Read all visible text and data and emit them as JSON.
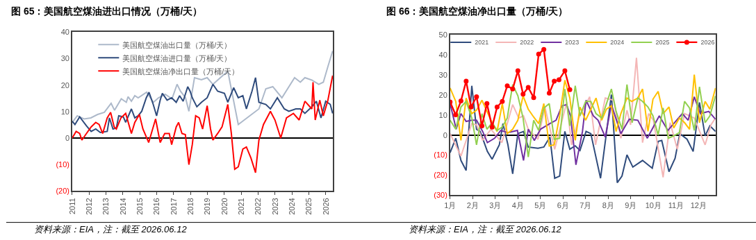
{
  "chart_data": [
    {
      "type": "line",
      "title": "图 65：美国航空煤油进出口情况（万桶/天）",
      "legend": "top left",
      "marker": "none",
      "line_style": "solid",
      "xlim": [
        2011,
        2026.43
      ],
      "xticks": [
        2011,
        2012,
        2013,
        2014,
        2015,
        2016,
        2017,
        2018,
        2019,
        2020,
        2021,
        2022,
        2023,
        2024,
        2025,
        2026
      ],
      "ylim": [
        -20,
        40
      ],
      "yticks": [
        {
          "value": -20,
          "label": "(20)"
        },
        {
          "value": -10,
          "label": "(10)"
        },
        0,
        10,
        20,
        30,
        40
      ],
      "annotations": [
        "资料来源：EIA，注：截至 2026.06.12"
      ],
      "series": [
        {
          "name": "美国航空煤油出口量（万桶/天）",
          "color": "#adb9ca",
          "x": [
            2011,
            2011.3,
            2011.7,
            2012.1,
            2012.5,
            2012.9,
            2013.3,
            2013.5,
            2013.9,
            2014.2,
            2014.3,
            2014.5,
            2014.7,
            2014.9,
            2015.4,
            2015.8,
            2016.1,
            2016.5,
            2016.9,
            2017.2,
            2017.4,
            2017.7,
            2017.9,
            2018.23,
            2018.64,
            2018.98,
            2019.32,
            2020.2,
            2020.82,
            2022.04,
            2022.45,
            2022.86,
            2023.4,
            2024.15,
            2024.49,
            2024.76,
            2025.17,
            2025.58,
            2025.85,
            2026.12,
            2026.4
          ],
          "values": [
            5.9,
            8.4,
            7.2,
            7.6,
            8.9,
            9.7,
            13.1,
            10.5,
            14.8,
            13.5,
            15.6,
            13.9,
            16.0,
            15.2,
            17.3,
            13.5,
            15.2,
            16.5,
            14.8,
            20.3,
            17.7,
            15.2,
            10.1,
            22.8,
            22.0,
            22.8,
            20.3,
            25.3,
            5.1,
            11.0,
            18.6,
            19.4,
            15.2,
            22.8,
            21.1,
            22.8,
            21.9,
            20.3,
            21.1,
            27.0,
            32.9
          ]
        },
        {
          "name": "美国航空煤油进口量（万桶/天）",
          "color": "#2f4b7c",
          "x": [
            2011,
            2011.16,
            2011.44,
            2011.84,
            2012.12,
            2012.39,
            2012.66,
            2013.07,
            2013.2,
            2013.41,
            2013.61,
            2013.75,
            2014.02,
            2014.16,
            2014.5,
            2014.7,
            2014.9,
            2015.11,
            2015.38,
            2015.54,
            2015.79,
            2015.99,
            2016.2,
            2016.33,
            2016.61,
            2016.88,
            2017.15,
            2017.35,
            2017.56,
            2017.83,
            2017.97,
            2018.1,
            2018.37,
            2018.64,
            2018.98,
            2019.32,
            2019.6,
            2020.0,
            2020.2,
            2020.55,
            2020.82,
            2021.09,
            2021.3,
            2021.63,
            2021.84,
            2022.04,
            2022.45,
            2022.72,
            2023.13,
            2023.54,
            2023.81,
            2024.22,
            2024.49,
            2024.76,
            2025.17,
            2025.44,
            2025.71,
            2025.99,
            2026.26,
            2026.4
          ],
          "values": [
            6.3,
            5.1,
            8.0,
            4.6,
            2.5,
            3.4,
            2.1,
            2.5,
            7.6,
            3.4,
            3.8,
            8.4,
            8.0,
            5.9,
            11.0,
            7.6,
            8.4,
            10.1,
            15.2,
            17.3,
            12.7,
            8.4,
            14.3,
            16.9,
            14.3,
            15.2,
            13.5,
            16.0,
            13.9,
            19.4,
            17.7,
            15.2,
            11.8,
            13.5,
            15.2,
            20.3,
            17.7,
            16.9,
            13.5,
            19.0,
            15.2,
            16.0,
            11.0,
            17.7,
            22.8,
            13.5,
            12.7,
            11.0,
            15.2,
            11.0,
            10.1,
            11.0,
            11.0,
            9.3,
            11.8,
            13.9,
            7.6,
            13.9,
            12.7,
            9.3
          ]
        },
        {
          "name": "美国航空煤油净出口量（万桶/天）",
          "color": "#ff0000",
          "x": [
            2011,
            2011.23,
            2011.44,
            2011.57,
            2011.84,
            2012.12,
            2012.39,
            2012.59,
            2012.8,
            2013.07,
            2013.27,
            2013.48,
            2013.61,
            2013.88,
            2014.16,
            2014.5,
            2014.7,
            2014.97,
            2015.18,
            2015.52,
            2015.93,
            2016.2,
            2016.47,
            2016.74,
            2016.88,
            2017.15,
            2017.29,
            2017.49,
            2017.69,
            2017.9,
            2018.1,
            2018.3,
            2018.51,
            2018.71,
            2018.98,
            2019.18,
            2019.32,
            2019.6,
            2019.86,
            2020.2,
            2020.41,
            2020.61,
            2020.82,
            2021.09,
            2021.3,
            2021.57,
            2021.84,
            2022.04,
            2022.31,
            2022.72,
            2022.99,
            2023.33,
            2023.67,
            2024.08,
            2024.42,
            2024.76,
            2025.17,
            2025.24,
            2025.37,
            2025.64,
            2025.85,
            2026.12,
            2026.4
          ],
          "values": [
            0,
            2.5,
            1.7,
            -0.8,
            1.7,
            4.2,
            5.9,
            5.1,
            1.7,
            7.6,
            9.7,
            4.2,
            3.4,
            7.6,
            9.3,
            1.7,
            5.9,
            8.9,
            3.4,
            -1.7,
            7.2,
            -1.7,
            1.7,
            1.7,
            -2.5,
            4.2,
            5.9,
            1.7,
            1.3,
            -10.1,
            -2.5,
            8.4,
            7.6,
            3.4,
            12.2,
            3.4,
            -0.8,
            1.7,
            4.2,
            12.7,
            1.7,
            -11.8,
            -10.9,
            -4.2,
            -3.4,
            -7.6,
            -13.1,
            -0.8,
            5.1,
            10.1,
            6.8,
            0,
            7.6,
            9.3,
            6.8,
            13.9,
            11.0,
            21.1,
            6.8,
            14.3,
            8.4,
            14.3,
            23.6
          ]
        }
      ]
    },
    {
      "type": "line",
      "title": "图 66：美国航空煤油净出口量（万桶/天）",
      "legend": "top",
      "marker": "none",
      "line_style": "solid",
      "xlim": [
        1,
        12.75
      ],
      "xticks": [
        {
          "value": 1,
          "label": "1月"
        },
        {
          "value": 2,
          "label": "2月"
        },
        {
          "value": 3,
          "label": "3月"
        },
        {
          "value": 4,
          "label": "4月"
        },
        {
          "value": 5,
          "label": "5月"
        },
        {
          "value": 6,
          "label": "6月"
        },
        {
          "value": 7,
          "label": "7月"
        },
        {
          "value": 8,
          "label": "8月"
        },
        {
          "value": 9,
          "label": "9月"
        },
        {
          "value": 10,
          "label": "10月"
        },
        {
          "value": 11,
          "label": "11月"
        },
        {
          "value": 12,
          "label": "12月"
        }
      ],
      "ylim": [
        -30,
        50
      ],
      "yticks": [
        {
          "value": -30,
          "label": "(30)"
        },
        {
          "value": -20,
          "label": "(20)"
        },
        {
          "value": -10,
          "label": "(10)"
        },
        0,
        10,
        20,
        30,
        40,
        50
      ],
      "annotations": [
        "资料来源：EIA，注：截至 2026.06.12"
      ],
      "series": [
        {
          "name": "2021",
          "color": "#2f4b7c",
          "x": [
            1.0,
            1.25,
            1.48,
            1.71,
            1.96,
            2.17,
            2.33,
            2.65,
            2.86,
            3.18,
            3.34,
            3.56,
            3.77,
            4.0,
            4.25,
            4.46,
            4.89,
            5.15,
            5.42,
            5.63,
            5.85,
            6.08,
            6.3,
            6.54,
            6.75,
            7.02,
            7.23,
            7.66,
            8.14,
            8.4,
            8.61,
            8.83,
            9.09,
            9.52,
            9.95,
            10.21,
            10.37,
            10.69,
            10.96,
            11.17,
            11.49,
            11.76,
            12.04,
            12.29,
            12.5,
            12.75
          ],
          "values": [
            -8.8,
            -1.6,
            -12.7,
            -17.7,
            24.6,
            2.9,
            1.8,
            -8.2,
            -12.1,
            -4.9,
            5.7,
            -4.9,
            -19.4,
            0.7,
            1.8,
            -6.0,
            -6.6,
            -6.0,
            -1.0,
            -21.6,
            -20.5,
            1.8,
            -7.1,
            -5.4,
            -7.7,
            1.8,
            0.7,
            -21.6,
            20.2,
            -23.8,
            -20.5,
            -9.9,
            -16.0,
            -12.7,
            -16.6,
            -3.2,
            -2.7,
            -18.3,
            -11.6,
            0.7,
            -2.1,
            -8.2,
            16.3,
            -0.4,
            4.6,
            1.8
          ]
        },
        {
          "name": "2022",
          "color": "#f4b6b6",
          "x": [
            1.0,
            1.48,
            1.96,
            2.17,
            2.44,
            2.81,
            3.29,
            3.77,
            4.04,
            4.25,
            4.46,
            4.89,
            5.2,
            5.63,
            6.16,
            6.38,
            6.7,
            7.18,
            7.44,
            7.87,
            8.24,
            8.56,
            8.83,
            8.99,
            9.25,
            9.52,
            9.79,
            10.0,
            10.43,
            10.74,
            11.06,
            11.38,
            11.81,
            12.29,
            12.55,
            12.75
          ],
          "values": [
            0.7,
            -10.5,
            5.7,
            5.1,
            -2.7,
            2.9,
            -3.8,
            15.2,
            8.5,
            9.6,
            2.9,
            -2.1,
            14.0,
            -7.1,
            16.3,
            -4.9,
            8.5,
            19.1,
            -4.9,
            18.5,
            17.4,
            -1.6,
            12.4,
            5.1,
            38.6,
            -3.8,
            10.7,
            7.4,
            -21.1,
            6.2,
            -7.1,
            10.7,
            8.5,
            -4.9,
            5.1,
            8.5
          ]
        },
        {
          "name": "2023",
          "color": "#7030a0",
          "x": [
            1.0,
            1.27,
            1.48,
            1.71,
            1.96,
            2.17,
            2.44,
            2.65,
            2.97,
            3.24,
            3.56,
            3.98,
            4.25,
            4.46,
            4.73,
            5.0,
            5.42,
            5.69,
            5.95,
            6.16,
            6.33,
            6.57,
            6.86,
            7.02,
            7.34,
            7.55,
            7.87,
            8.14,
            8.56,
            8.93,
            9.31,
            9.73,
            10.26,
            10.64,
            11.28,
            11.54,
            11.81,
            12.08,
            12.45,
            12.75
          ],
          "values": [
            15.7,
            2.9,
            10.7,
            6.8,
            7.4,
            7.4,
            1.8,
            -3.8,
            -1.6,
            2.3,
            1.2,
            2.3,
            -12.7,
            2.9,
            -2.7,
            2.9,
            5.7,
            7.4,
            14.6,
            15.2,
            9.6,
            -14.9,
            1.8,
            17.4,
            9.6,
            7.4,
            -1.0,
            15.2,
            0.7,
            7.9,
            7.4,
            -1.6,
            9.6,
            2.3,
            10.7,
            7.4,
            19.1,
            10.7,
            11.8,
            7.9
          ]
        },
        {
          "name": "2024",
          "color": "#ffc000",
          "x": [
            1.0,
            1.25,
            1.48,
            1.71,
            1.96,
            2.17,
            2.41,
            2.63,
            2.86,
            3.08,
            3.31,
            3.53,
            3.77,
            4.0,
            4.23,
            4.46,
            4.7,
            4.92,
            5.15,
            5.39,
            5.61,
            5.85,
            6.08,
            6.3,
            6.54,
            6.75,
            7.0,
            7.23,
            7.46,
            7.71,
            7.92,
            8.14,
            8.35,
            8.56,
            8.83,
            9.04,
            9.31,
            9.52,
            9.76,
            9.98,
            10.21,
            10.43,
            10.69,
            10.9,
            11.15,
            11.38,
            11.6,
            11.81,
            12.04,
            12.29,
            12.5,
            12.75
          ],
          "values": [
            23.5,
            16.8,
            -2.7,
            18.5,
            10.7,
            12.4,
            17.4,
            11.8,
            6.2,
            1.8,
            15.7,
            0.7,
            2.9,
            7.4,
            19.6,
            12.9,
            9.0,
            5.7,
            15.7,
            -5.5,
            -4.9,
            9.6,
            27.4,
            18.5,
            -2.7,
            14.0,
            7.4,
            12.9,
            18.5,
            7.4,
            12.9,
            14.6,
            1.8,
            10.7,
            18.5,
            16.8,
            18.5,
            23.0,
            1.8,
            17.9,
            21.8,
            10.7,
            14.0,
            3.5,
            8.5,
            6.2,
            2.9,
            30.2,
            6.2,
            16.8,
            12.9,
            23.5
          ]
        },
        {
          "name": "2025",
          "color": "#92d050",
          "x": [
            1.0,
            1.25,
            1.48,
            1.71,
            1.96,
            2.17,
            2.41,
            2.63,
            2.86,
            3.08,
            3.31,
            3.53,
            3.77,
            4.0,
            4.23,
            4.46,
            4.7,
            4.92,
            5.15,
            5.39,
            5.61,
            5.85,
            6.08,
            6.3,
            6.54,
            6.75,
            7.0,
            7.23,
            7.46,
            7.71,
            8.14,
            8.35,
            8.61,
            8.83,
            9.06,
            9.31,
            9.52,
            9.76,
            9.98,
            10.21,
            10.43,
            10.66,
            10.9,
            11.15,
            11.38,
            11.6,
            11.81,
            12.04,
            12.29,
            12.5,
            12.75
          ],
          "values": [
            7.4,
            2.9,
            14.0,
            16.8,
            8.5,
            -4.9,
            10.7,
            2.9,
            6.2,
            2.3,
            4.0,
            8.5,
            25.2,
            19.6,
            8.5,
            -11.0,
            7.4,
            2.3,
            13.5,
            15.7,
            -2.1,
            -1.6,
            23.0,
            4.6,
            24.6,
            9.6,
            16.8,
            16.8,
            10.7,
            8.5,
            23.0,
            11.8,
            2.9,
            25.2,
            6.2,
            18.5,
            16.8,
            14.0,
            9.6,
            0,
            13.5,
            -1.6,
            -0.4,
            1.2,
            16.8,
            13.5,
            2.3,
            24.1,
            6.2,
            9.6,
            19.6
          ]
        },
        {
          "name": "2026",
          "color": "#ff0000",
          "marker": "circle",
          "x": [
            1.0,
            1.245,
            1.48,
            1.71,
            1.93,
            2.17,
            2.41,
            2.63,
            2.86,
            3.08,
            3.31,
            3.53,
            3.77,
            4.0,
            4.23,
            4.46,
            4.7,
            4.92,
            5.15,
            5.39,
            5.61,
            5.82,
            6.08,
            6.3
          ],
          "values": [
            16.5,
            10.1,
            17.0,
            26.9,
            14.0,
            19.1,
            4.6,
            15.7,
            4.0,
            14.0,
            16.8,
            24.6,
            23.0,
            32.1,
            20.4,
            23.8,
            18.7,
            40.4,
            42.8,
            20.9,
            26.9,
            27.6,
            32.1,
            22.7
          ]
        }
      ]
    }
  ]
}
